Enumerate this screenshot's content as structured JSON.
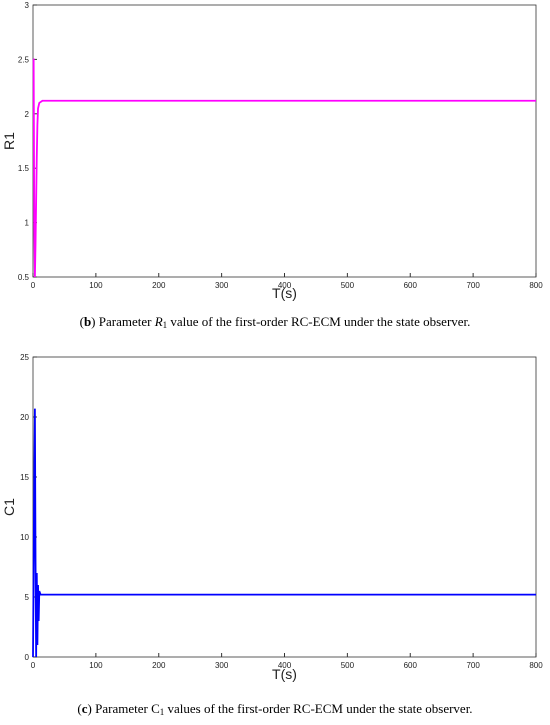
{
  "chart_data": [
    {
      "type": "line",
      "x": [
        0,
        1,
        2,
        3,
        4,
        5,
        6,
        7,
        8,
        10,
        15,
        800
      ],
      "series": [
        {
          "color": "#ff00ff",
          "values": [
            2.5,
            2.5,
            1.0,
            0.5,
            0.8,
            1.2,
            1.6,
            1.9,
            2.05,
            2.1,
            2.12,
            2.12
          ]
        }
      ],
      "xlim": [
        0,
        800
      ],
      "xticks": [
        0,
        100,
        200,
        300,
        400,
        500,
        600,
        700,
        800
      ],
      "ylim": [
        0.5,
        3
      ],
      "yticks": [
        0.5,
        1,
        1.5,
        2,
        2.5,
        3
      ],
      "xlabel": "T(s)",
      "ylabel": "R1",
      "grid": false,
      "caption": [
        "(",
        "b",
        ") Parameter ",
        "R",
        "1",
        " value of the first-order RC-ECM under the state observer."
      ]
    },
    {
      "type": "line",
      "x": [
        0,
        2,
        3,
        4,
        5,
        6,
        7,
        8,
        9,
        10,
        12,
        15,
        800
      ],
      "series": [
        {
          "color": "#0000ff",
          "values": [
            0,
            15,
            20.7,
            8,
            0,
            7,
            1,
            6,
            3,
            5.5,
            5.2,
            5.2,
            5.2
          ]
        }
      ],
      "xlim": [
        0,
        800
      ],
      "xticks": [
        0,
        100,
        200,
        300,
        400,
        500,
        600,
        700,
        800
      ],
      "ylim": [
        0,
        25
      ],
      "yticks": [
        0,
        5,
        10,
        15,
        20,
        25
      ],
      "xlabel": "T(s)",
      "ylabel": "C1",
      "grid": false,
      "caption": [
        "(",
        "c",
        ") Parameter C",
        "1",
        " values of the first-order RC-ECM under the state observer."
      ]
    }
  ]
}
